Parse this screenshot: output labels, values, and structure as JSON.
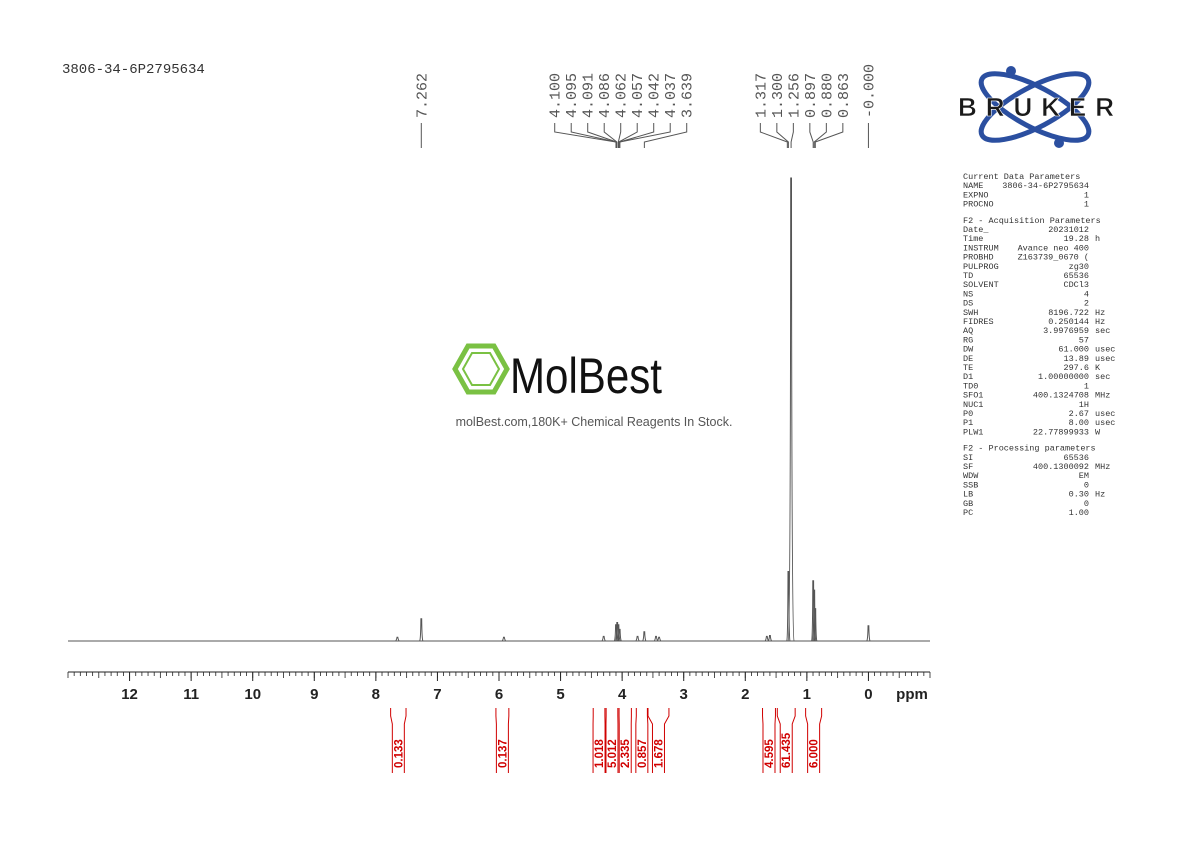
{
  "sample_id": "3806-34-6P2795634",
  "bruker_logo": "BRUKER",
  "watermark": {
    "name": "MolBest",
    "tagline": "molBest.com,180K+ Chemical Reagents In Stock."
  },
  "parameters": [
    {
      "title": "Current Data Parameters",
      "rows": [
        [
          "NAME",
          "3806-34-6P2795634"
        ],
        [
          "EXPNO",
          "1"
        ],
        [
          "PROCNO",
          "1"
        ]
      ]
    },
    {
      "title": "F2 - Acquisition Parameters",
      "rows": [
        [
          "Date_",
          "20231012"
        ],
        [
          "Time",
          "19.28",
          "h"
        ],
        [
          "INSTRUM",
          "Avance neo 400"
        ],
        [
          "PROBHD",
          "Z163739_0670 ("
        ],
        [
          "PULPROG",
          "zg30"
        ],
        [
          "TD",
          "65536"
        ],
        [
          "SOLVENT",
          "CDCl3"
        ],
        [
          "NS",
          "4"
        ],
        [
          "DS",
          "2"
        ],
        [
          "SWH",
          "8196.722",
          "Hz"
        ],
        [
          "FIDRES",
          "0.250144",
          "Hz"
        ],
        [
          "AQ",
          "3.9976959",
          "sec"
        ],
        [
          "RG",
          "57"
        ],
        [
          "DW",
          "61.000",
          "usec"
        ],
        [
          "DE",
          "13.89",
          "usec"
        ],
        [
          "TE",
          "297.6",
          "K"
        ],
        [
          "D1",
          "1.00000000",
          "sec"
        ],
        [
          "TD0",
          "1"
        ],
        [
          "SFO1",
          "400.1324708",
          "MHz"
        ],
        [
          "NUC1",
          "1H"
        ],
        [
          "P0",
          "2.67",
          "usec"
        ],
        [
          "P1",
          "8.00",
          "usec"
        ],
        [
          "PLW1",
          "22.77899933",
          "W"
        ]
      ]
    },
    {
      "title": "F2 - Processing parameters",
      "rows": [
        [
          "SI",
          "65536"
        ],
        [
          "SF",
          "400.1300092",
          "MHz"
        ],
        [
          "WDW",
          "EM"
        ],
        [
          "SSB",
          "0"
        ],
        [
          "LB",
          "0.30",
          "Hz"
        ],
        [
          "GB",
          "0"
        ],
        [
          "PC",
          "1.00"
        ]
      ]
    }
  ],
  "chart_data": {
    "type": "nmr",
    "x_label": "ppm",
    "xlim": [
      13,
      -1
    ],
    "xticks": [
      12,
      11,
      10,
      9,
      8,
      7,
      6,
      5,
      4,
      3,
      2,
      1,
      0
    ],
    "color": "#555555",
    "x": [
      7.65,
      7.262,
      5.92,
      4.3,
      4.1,
      4.08,
      4.06,
      4.04,
      3.75,
      3.64,
      3.45,
      3.4,
      1.65,
      1.6,
      1.3,
      1.256,
      0.897,
      0.88,
      0.863,
      0.0
    ],
    "values": [
      0.8,
      4.8,
      0.8,
      1,
      3.5,
      4,
      3.5,
      2.5,
      1,
      2,
      1,
      0.8,
      1,
      1.2,
      15,
      100,
      13,
      11,
      7,
      3.3
    ],
    "peak_labels": [
      {
        "value": 7.262,
        "label": "7.262"
      },
      {
        "value": 4.1,
        "label": "4.100"
      },
      {
        "value": 4.095,
        "label": "4.095"
      },
      {
        "value": 4.091,
        "label": "4.091"
      },
      {
        "value": 4.086,
        "label": "4.086"
      },
      {
        "value": 4.062,
        "label": "4.062"
      },
      {
        "value": 4.057,
        "label": "4.057"
      },
      {
        "value": 4.042,
        "label": "4.042"
      },
      {
        "value": 4.037,
        "label": "4.037"
      },
      {
        "value": 3.639,
        "label": "3.639"
      },
      {
        "value": 1.317,
        "label": "1.317"
      },
      {
        "value": 1.3,
        "label": "1.300"
      },
      {
        "value": 1.256,
        "label": "1.256"
      },
      {
        "value": 0.897,
        "label": "0.897"
      },
      {
        "value": 0.88,
        "label": "0.880"
      },
      {
        "value": 0.863,
        "label": "0.863"
      },
      {
        "value": 0,
        "label": "-0.000"
      }
    ],
    "integrals": {
      "color": "#d00000",
      "ranges": [
        [
          7.76,
          7.51
        ],
        [
          6.05,
          5.84
        ],
        [
          4.47,
          4.28
        ],
        [
          4.26,
          4.07
        ],
        [
          4.05,
          3.85
        ],
        [
          3.77,
          3.59
        ],
        [
          3.58,
          3.24
        ],
        [
          1.72,
          1.51
        ],
        [
          1.48,
          1.19
        ],
        [
          1.02,
          0.76
        ]
      ],
      "values": [
        0.133,
        0.137,
        1.018,
        5.012,
        2.335,
        0.857,
        1.678,
        4.595,
        61.435,
        6
      ],
      "value_labels": [
        "0.133",
        "0.137",
        "1.018",
        "5.012",
        "2.335",
        "0.857",
        "1.678",
        "4.595",
        "61.435",
        "6.000"
      ]
    }
  }
}
